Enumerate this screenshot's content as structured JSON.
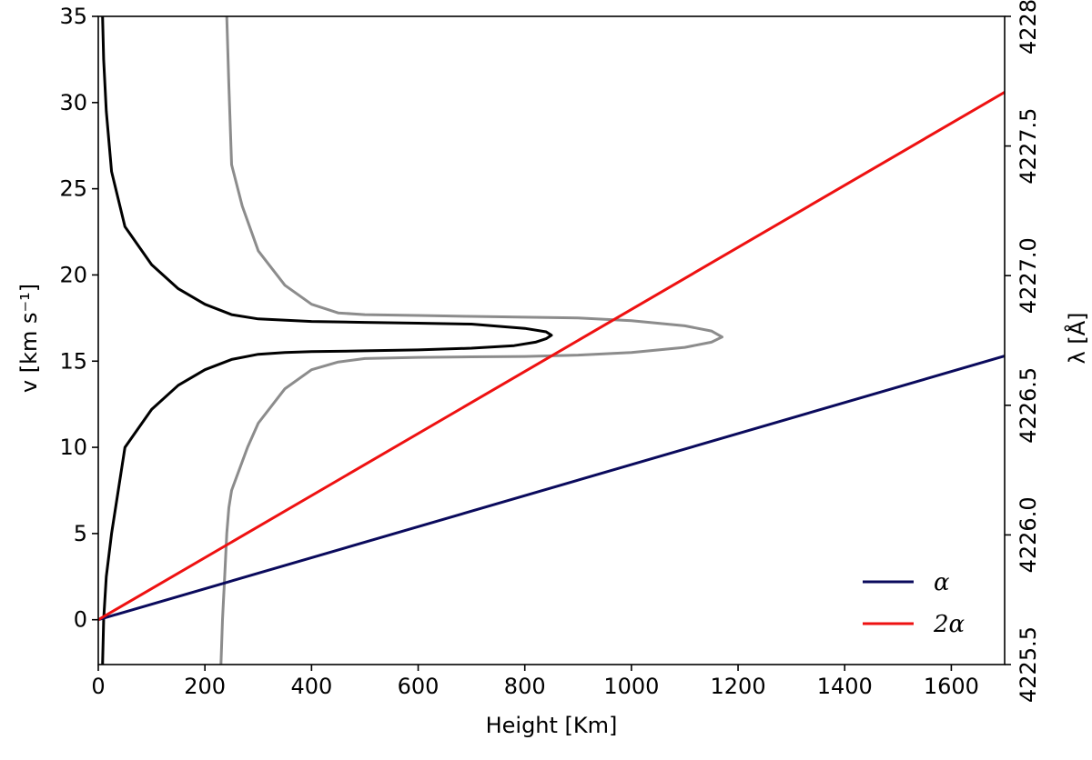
{
  "chart_data": {
    "type": "line",
    "title": "",
    "xlabel": "Height [Km]",
    "ylabel": "v [km s⁻¹]",
    "y2label": "λ [Å]",
    "xlim": [
      0,
      1700
    ],
    "ylim": [
      -2.6,
      35
    ],
    "y2lim": [
      4225.5,
      4228.0
    ],
    "x_ticks": [
      "0",
      "200",
      "400",
      "600",
      "800",
      "1000",
      "1200",
      "1400",
      "1600"
    ],
    "y_ticks": [
      "0",
      "5",
      "10",
      "15",
      "20",
      "25",
      "30",
      "35"
    ],
    "y2_ticks": [
      "4225.5",
      "4226.0",
      "4226.5",
      "4227.0",
      "4227.5",
      "4228.0"
    ],
    "grid": false,
    "legend_position": "lower-right",
    "series": [
      {
        "name": "α",
        "color": "#0a0a5c",
        "x": [
          0,
          1700
        ],
        "y": [
          0,
          15.3
        ]
      },
      {
        "name": "2α",
        "color": "#ee1111",
        "x": [
          0,
          1700
        ],
        "y": [
          0,
          30.6
        ]
      },
      {
        "color": "#000000",
        "x": [
          8,
          10,
          15,
          25,
          50,
          100,
          150,
          200,
          250,
          300,
          350,
          400,
          500,
          600,
          700,
          780,
          820,
          840,
          850,
          840,
          800,
          700,
          600,
          500,
          400,
          300,
          250,
          200,
          150,
          100,
          50,
          25,
          15,
          10,
          8
        ],
        "y": [
          -2.6,
          0,
          2.5,
          5,
          10,
          12.2,
          13.6,
          14.5,
          15.1,
          15.4,
          15.5,
          15.55,
          15.6,
          15.65,
          15.75,
          15.9,
          16.1,
          16.3,
          16.5,
          16.7,
          16.9,
          17.15,
          17.2,
          17.25,
          17.3,
          17.45,
          17.7,
          18.3,
          19.2,
          20.6,
          22.8,
          26,
          29.5,
          32.5,
          35
        ]
      },
      {
        "color": "#8c8c8c",
        "x": [
          230,
          233,
          237,
          241,
          245,
          250,
          280,
          300,
          350,
          400,
          450,
          500,
          600,
          700,
          800,
          900,
          1000,
          1100,
          1150,
          1170,
          1150,
          1100,
          1000,
          900,
          800,
          700,
          600,
          500,
          450,
          400,
          350,
          300,
          270,
          250,
          245,
          241
        ],
        "y": [
          -2.6,
          0,
          2.5,
          5,
          6.5,
          7.5,
          10,
          11.4,
          13.4,
          14.5,
          14.95,
          15.15,
          15.22,
          15.25,
          15.27,
          15.35,
          15.5,
          15.8,
          16.1,
          16.4,
          16.75,
          17.05,
          17.35,
          17.5,
          17.55,
          17.6,
          17.65,
          17.7,
          17.8,
          18.3,
          19.4,
          21.4,
          24,
          26.4,
          31,
          35
        ]
      }
    ]
  }
}
